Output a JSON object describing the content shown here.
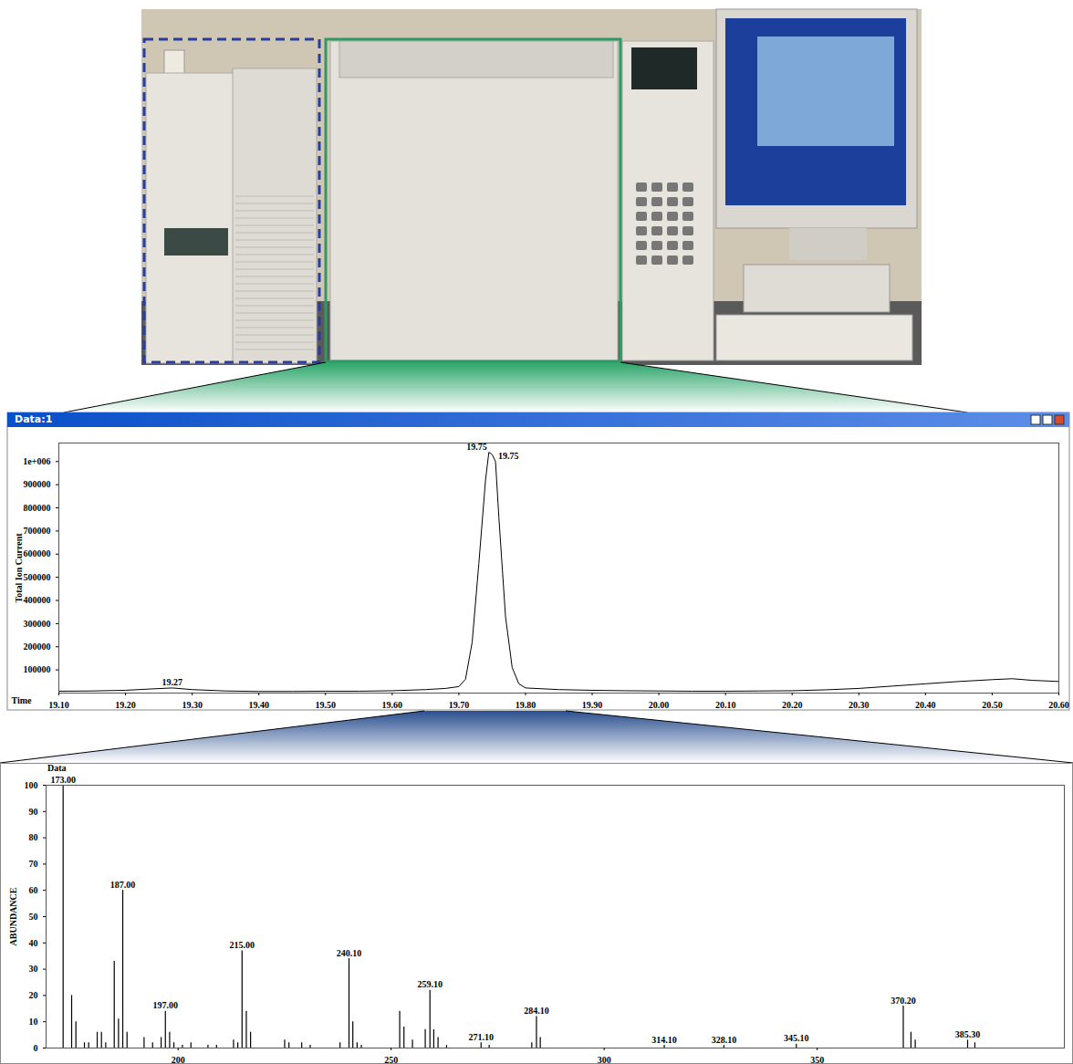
{
  "chart_data": [
    {
      "type": "line",
      "title": "Data:1",
      "x_label": "Time",
      "y_label": "Total Ion Current",
      "color": "#000000",
      "x": [
        19.1,
        19.15,
        19.2,
        19.24,
        19.27,
        19.3,
        19.35,
        19.4,
        19.45,
        19.5,
        19.55,
        19.6,
        19.65,
        19.68,
        19.7,
        19.71,
        19.72,
        19.73,
        19.74,
        19.745,
        19.75,
        19.755,
        19.76,
        19.77,
        19.78,
        19.79,
        19.8,
        19.85,
        19.9,
        19.95,
        20.0,
        20.05,
        20.1,
        20.15,
        20.2,
        20.25,
        20.3,
        20.35,
        20.4,
        20.45,
        20.5,
        20.53,
        20.56,
        20.6
      ],
      "values": [
        8000,
        9000,
        12000,
        18000,
        22000,
        15000,
        9000,
        7000,
        7000,
        8000,
        8000,
        10000,
        15000,
        20000,
        28000,
        60000,
        220000,
        560000,
        920000,
        1040000,
        1030000,
        1000000,
        760000,
        330000,
        110000,
        40000,
        22000,
        15000,
        12000,
        10000,
        9000,
        8000,
        8000,
        9000,
        10000,
        14000,
        20000,
        30000,
        40000,
        50000,
        58000,
        62000,
        55000,
        50000
      ],
      "xlim": [
        19.1,
        20.6
      ],
      "xticks": [
        {
          "value": 19.1,
          "label": "19.10"
        },
        {
          "value": 19.2,
          "label": "19.20"
        },
        {
          "value": 19.3,
          "label": "19.30"
        },
        {
          "value": 19.4,
          "label": "19.40"
        },
        {
          "value": 19.5,
          "label": "19.50"
        },
        {
          "value": 19.6,
          "label": "19.60"
        },
        {
          "value": 19.7,
          "label": "19.70"
        },
        {
          "value": 19.8,
          "label": "19.80"
        },
        {
          "value": 19.9,
          "label": "19.90"
        },
        {
          "value": 20.0,
          "label": "20.00"
        },
        {
          "value": 20.1,
          "label": "20.10"
        },
        {
          "value": 20.2,
          "label": "20.20"
        },
        {
          "value": 20.3,
          "label": "20.30"
        },
        {
          "value": 20.4,
          "label": "20.40"
        },
        {
          "value": 20.5,
          "label": "20.50"
        },
        {
          "value": 20.6,
          "label": "20.60"
        }
      ],
      "ylim": [
        0,
        1080000
      ],
      "yticks": [
        100000,
        200000,
        300000,
        400000,
        500000,
        600000,
        700000,
        800000,
        900000,
        {
          "value": 1000000,
          "label": "1e+006"
        }
      ],
      "annotations": [
        {
          "x": 19.745,
          "y": 1040000,
          "label": "19.75"
        },
        {
          "x": 19.755,
          "y": 1000000,
          "label": "19.75"
        },
        {
          "x": 19.27,
          "y": 22000,
          "label": "19.27"
        }
      ]
    },
    {
      "type": "bar",
      "title": "Data",
      "y_label": "ABUNDANCE",
      "color": "#000000",
      "x": [
        173,
        175,
        176,
        178,
        179,
        181,
        182,
        183,
        185,
        186,
        187,
        188,
        192,
        194,
        196,
        197,
        198,
        199,
        201,
        203,
        207,
        209,
        213,
        214,
        215,
        216,
        217,
        225,
        226,
        229,
        231,
        238,
        240.1,
        241,
        242,
        243,
        252,
        253,
        255,
        258,
        259.1,
        260,
        261,
        263,
        271.1,
        273,
        283,
        284.1,
        285,
        314.1,
        328.1,
        345.1,
        370.2,
        372,
        373,
        385.3,
        387
      ],
      "values": [
        100,
        20,
        10,
        2,
        2,
        6,
        6,
        2,
        33,
        11,
        60,
        6,
        4,
        2,
        4,
        14,
        6,
        2,
        1,
        2,
        1,
        1,
        3,
        2,
        37,
        14,
        6,
        3,
        2,
        2,
        1,
        2,
        34,
        10,
        2,
        1,
        14,
        8,
        3,
        7,
        22,
        7,
        4,
        1,
        2,
        1,
        2,
        12,
        4,
        1,
        1,
        1.5,
        16,
        6,
        3,
        3,
        2
      ],
      "xlim": [
        169,
        408
      ],
      "xticks": [
        200,
        250,
        300,
        350
      ],
      "ylim": [
        0,
        100
      ],
      "yticks": [
        0,
        10,
        20,
        30,
        40,
        50,
        60,
        70,
        80,
        90,
        100
      ],
      "annotations": [
        {
          "x": 173,
          "y": 100,
          "label": "173.00"
        },
        {
          "x": 187,
          "y": 60,
          "label": "187.00"
        },
        {
          "x": 197,
          "y": 14,
          "label": "197.00"
        },
        {
          "x": 215,
          "y": 37,
          "label": "215.00"
        },
        {
          "x": 240.1,
          "y": 34,
          "label": "240.10"
        },
        {
          "x": 259.1,
          "y": 22,
          "label": "259.10"
        },
        {
          "x": 271.1,
          "y": 2,
          "label": "271.10"
        },
        {
          "x": 284.1,
          "y": 12,
          "label": "284.10"
        },
        {
          "x": 314.1,
          "y": 1,
          "label": "314.10"
        },
        {
          "x": 328.1,
          "y": 1,
          "label": "328.10"
        },
        {
          "x": 345.1,
          "y": 1.5,
          "label": "345.10"
        },
        {
          "x": 370.2,
          "y": 16,
          "label": "370.20"
        },
        {
          "x": 385.3,
          "y": 3,
          "label": "385.30"
        }
      ]
    }
  ]
}
